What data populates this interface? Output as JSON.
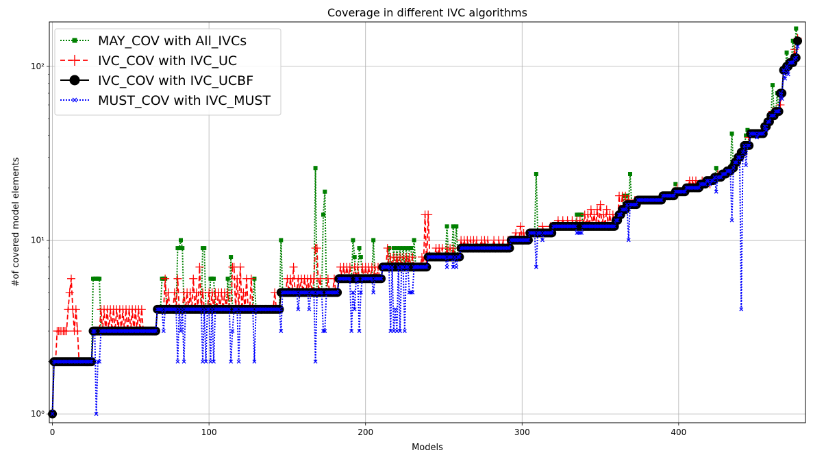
{
  "chart_data": {
    "type": "line",
    "title": "Coverage in different IVC algorithms",
    "xlabel": "Models",
    "ylabel": "#of covered model elements",
    "xlim": [
      -2,
      481
    ],
    "ylim": [
      0.89,
      180
    ],
    "yscale": "log",
    "grid": true,
    "legend_position": "top-left",
    "x_ticks": [
      0,
      100,
      200,
      300,
      400
    ],
    "x_tick_labels": [
      "0",
      "100",
      "200",
      "300",
      "400"
    ],
    "y_ticks": [
      1,
      10,
      100
    ],
    "y_tick_labels": [
      "10⁰",
      "10¹",
      "10²"
    ],
    "baseline_breakpoints": [
      [
        0,
        1
      ],
      [
        1,
        2
      ],
      [
        26,
        3
      ],
      [
        67,
        4
      ],
      [
        146,
        5
      ],
      [
        183,
        6
      ],
      [
        211,
        7
      ],
      [
        240,
        8
      ],
      [
        261,
        9
      ],
      [
        293,
        10
      ],
      [
        305,
        11
      ],
      [
        320,
        12
      ],
      [
        360,
        13
      ],
      [
        362,
        14
      ],
      [
        364,
        15
      ],
      [
        367,
        16
      ],
      [
        374,
        17
      ],
      [
        390,
        18
      ],
      [
        398,
        19
      ],
      [
        405,
        20
      ],
      [
        414,
        21
      ],
      [
        418,
        22
      ],
      [
        423,
        23
      ],
      [
        428,
        24
      ],
      [
        431,
        25
      ],
      [
        434,
        26
      ],
      [
        436,
        28
      ],
      [
        438,
        30
      ],
      [
        440,
        32
      ],
      [
        442,
        35
      ],
      [
        446,
        41
      ],
      [
        455,
        45
      ],
      [
        457,
        48
      ],
      [
        459,
        52
      ],
      [
        462,
        55
      ],
      [
        465,
        70
      ],
      [
        467,
        95
      ],
      [
        469,
        100
      ],
      [
        471,
        105
      ],
      [
        474,
        112
      ],
      [
        476,
        140
      ]
    ],
    "series": [
      {
        "name": "MAY_COV with All_IVCs",
        "color": "#008000",
        "line_style": "dotted",
        "marker": "square",
        "deviations": [
          [
            26,
            6
          ],
          [
            27,
            6
          ],
          [
            28,
            6
          ],
          [
            29,
            6
          ],
          [
            30,
            6
          ],
          [
            70,
            6
          ],
          [
            71,
            6
          ],
          [
            72,
            6
          ],
          [
            80,
            9
          ],
          [
            81,
            9
          ],
          [
            82,
            10
          ],
          [
            83,
            9
          ],
          [
            96,
            9
          ],
          [
            97,
            9
          ],
          [
            101,
            6
          ],
          [
            102,
            6
          ],
          [
            103,
            6
          ],
          [
            112,
            6
          ],
          [
            114,
            8
          ],
          [
            129,
            6
          ],
          [
            146,
            10
          ],
          [
            168,
            26
          ],
          [
            173,
            14
          ],
          [
            174,
            19
          ],
          [
            192,
            10
          ],
          [
            193,
            8
          ],
          [
            196,
            9
          ],
          [
            197,
            8
          ],
          [
            205,
            10
          ],
          [
            215,
            9
          ],
          [
            218,
            9
          ],
          [
            220,
            9
          ],
          [
            222,
            9
          ],
          [
            224,
            9
          ],
          [
            226,
            9
          ],
          [
            228,
            9
          ],
          [
            229,
            9
          ],
          [
            231,
            10
          ],
          [
            252,
            12
          ],
          [
            256,
            12
          ],
          [
            258,
            12
          ],
          [
            309,
            24
          ],
          [
            335,
            14
          ],
          [
            336,
            14
          ],
          [
            337,
            14
          ],
          [
            338,
            14
          ],
          [
            365,
            18
          ],
          [
            367,
            18
          ],
          [
            369,
            24
          ],
          [
            372,
            16
          ],
          [
            398,
            21
          ],
          [
            403,
            19
          ],
          [
            410,
            20
          ],
          [
            415,
            21
          ],
          [
            424,
            26
          ],
          [
            432,
            25
          ],
          [
            434,
            41
          ],
          [
            443,
            40
          ],
          [
            444,
            43
          ],
          [
            460,
            78
          ],
          [
            463,
            70
          ],
          [
            469,
            120
          ],
          [
            473,
            140
          ],
          [
            475,
            165
          ]
        ]
      },
      {
        "name": "IVC_COV with IVC_UC",
        "color": "#ff0000",
        "line_style": "dashed",
        "marker": "plus",
        "deviations": [
          [
            3,
            3
          ],
          [
            4,
            3
          ],
          [
            5,
            3
          ],
          [
            6,
            3
          ],
          [
            7,
            3
          ],
          [
            8,
            3
          ],
          [
            9,
            3
          ],
          [
            10,
            4
          ],
          [
            11,
            5
          ],
          [
            12,
            6
          ],
          [
            13,
            4
          ],
          [
            14,
            3
          ],
          [
            15,
            4
          ],
          [
            16,
            3
          ],
          [
            31,
            4
          ],
          [
            33,
            4
          ],
          [
            35,
            4
          ],
          [
            37,
            4
          ],
          [
            39,
            4
          ],
          [
            41,
            4
          ],
          [
            43,
            4
          ],
          [
            45,
            4
          ],
          [
            47,
            4
          ],
          [
            49,
            4
          ],
          [
            51,
            4
          ],
          [
            53,
            4
          ],
          [
            55,
            4
          ],
          [
            57,
            4
          ],
          [
            72,
            6
          ],
          [
            74,
            5
          ],
          [
            78,
            5
          ],
          [
            80,
            6
          ],
          [
            84,
            5
          ],
          [
            86,
            5
          ],
          [
            88,
            5
          ],
          [
            90,
            6
          ],
          [
            92,
            5
          ],
          [
            94,
            7
          ],
          [
            96,
            5
          ],
          [
            100,
            5
          ],
          [
            102,
            5
          ],
          [
            104,
            5
          ],
          [
            106,
            5
          ],
          [
            108,
            5
          ],
          [
            110,
            5
          ],
          [
            112,
            5
          ],
          [
            115,
            7
          ],
          [
            116,
            7
          ],
          [
            118,
            6
          ],
          [
            120,
            7
          ],
          [
            122,
            5
          ],
          [
            124,
            6
          ],
          [
            127,
            6
          ],
          [
            142,
            5
          ],
          [
            145,
            4
          ],
          [
            150,
            6
          ],
          [
            152,
            6
          ],
          [
            154,
            7
          ],
          [
            157,
            6
          ],
          [
            159,
            6
          ],
          [
            161,
            6
          ],
          [
            163,
            6
          ],
          [
            165,
            6
          ],
          [
            167,
            6
          ],
          [
            168,
            9
          ],
          [
            169,
            9
          ],
          [
            171,
            6
          ],
          [
            176,
            6
          ],
          [
            180,
            6
          ],
          [
            184,
            7
          ],
          [
            186,
            7
          ],
          [
            188,
            7
          ],
          [
            190,
            7
          ],
          [
            193,
            7
          ],
          [
            195,
            7
          ],
          [
            198,
            7
          ],
          [
            200,
            7
          ],
          [
            202,
            7
          ],
          [
            204,
            7
          ],
          [
            206,
            7
          ],
          [
            208,
            7
          ],
          [
            214,
            9
          ],
          [
            216,
            8
          ],
          [
            218,
            8
          ],
          [
            220,
            8
          ],
          [
            222,
            8
          ],
          [
            224,
            8
          ],
          [
            226,
            8
          ],
          [
            228,
            8
          ],
          [
            230,
            8
          ],
          [
            236,
            8
          ],
          [
            238,
            14
          ],
          [
            240,
            14
          ],
          [
            245,
            9
          ],
          [
            247,
            9
          ],
          [
            249,
            9
          ],
          [
            252,
            9
          ],
          [
            254,
            9
          ],
          [
            256,
            9
          ],
          [
            261,
            10
          ],
          [
            263,
            10
          ],
          [
            265,
            10
          ],
          [
            267,
            10
          ],
          [
            269,
            10
          ],
          [
            271,
            10
          ],
          [
            274,
            10
          ],
          [
            276,
            10
          ],
          [
            278,
            10
          ],
          [
            282,
            10
          ],
          [
            285,
            10
          ],
          [
            288,
            10
          ],
          [
            291,
            10
          ],
          [
            293,
            10
          ],
          [
            296,
            11
          ],
          [
            299,
            12
          ],
          [
            301,
            11
          ],
          [
            305,
            11
          ],
          [
            310,
            11
          ],
          [
            313,
            12
          ],
          [
            316,
            11
          ],
          [
            318,
            12
          ],
          [
            323,
            13
          ],
          [
            326,
            13
          ],
          [
            329,
            13
          ],
          [
            332,
            13
          ],
          [
            335,
            13
          ],
          [
            337,
            13
          ],
          [
            340,
            14
          ],
          [
            342,
            14
          ],
          [
            344,
            15
          ],
          [
            346,
            14
          ],
          [
            348,
            15
          ],
          [
            350,
            16
          ],
          [
            352,
            14
          ],
          [
            354,
            15
          ],
          [
            356,
            14
          ],
          [
            358,
            14
          ],
          [
            362,
            18
          ],
          [
            364,
            18
          ],
          [
            366,
            18
          ],
          [
            368,
            17
          ],
          [
            370,
            16
          ],
          [
            372,
            17
          ],
          [
            399,
            20
          ],
          [
            401,
            19
          ],
          [
            407,
            22
          ],
          [
            409,
            22
          ],
          [
            411,
            22
          ],
          [
            415,
            22
          ],
          [
            420,
            21
          ],
          [
            425,
            24
          ],
          [
            427,
            23
          ],
          [
            430,
            25
          ],
          [
            436,
            27
          ],
          [
            438,
            29
          ],
          [
            441,
            31
          ],
          [
            445,
            39
          ],
          [
            460,
            55
          ],
          [
            465,
            60
          ],
          [
            471,
            105
          ],
          [
            474,
            125
          ],
          [
            476,
            145
          ]
        ]
      },
      {
        "name": "IVC_COV with IVC_UCBF",
        "color": "#000000",
        "line_style": "solid",
        "marker": "circle",
        "deviations": []
      },
      {
        "name": "MUST_COV with IVC_MUST",
        "color": "#0000ff",
        "line_style": "dotted",
        "marker": "x",
        "deviations": [
          [
            28,
            1
          ],
          [
            29,
            2
          ],
          [
            30,
            2
          ],
          [
            71,
            3
          ],
          [
            80,
            2
          ],
          [
            82,
            3
          ],
          [
            84,
            2
          ],
          [
            96,
            2
          ],
          [
            98,
            2
          ],
          [
            101,
            2
          ],
          [
            103,
            2
          ],
          [
            114,
            2
          ],
          [
            115,
            3
          ],
          [
            119,
            2
          ],
          [
            129,
            2
          ],
          [
            146,
            3
          ],
          [
            157,
            4
          ],
          [
            164,
            4
          ],
          [
            168,
            2
          ],
          [
            173,
            3
          ],
          [
            174,
            3
          ],
          [
            191,
            3
          ],
          [
            192,
            5
          ],
          [
            193,
            4
          ],
          [
            196,
            3
          ],
          [
            197,
            5
          ],
          [
            205,
            5
          ],
          [
            216,
            3
          ],
          [
            218,
            3
          ],
          [
            219,
            4
          ],
          [
            220,
            3
          ],
          [
            222,
            3
          ],
          [
            225,
            3
          ],
          [
            228,
            5
          ],
          [
            229,
            5
          ],
          [
            230,
            5
          ],
          [
            252,
            7
          ],
          [
            256,
            7
          ],
          [
            258,
            7
          ],
          [
            309,
            7
          ],
          [
            313,
            10
          ],
          [
            335,
            11
          ],
          [
            336,
            11
          ],
          [
            337,
            11
          ],
          [
            338,
            11
          ],
          [
            368,
            10
          ],
          [
            420,
            21
          ],
          [
            424,
            19
          ],
          [
            434,
            13
          ],
          [
            440,
            4
          ],
          [
            443,
            27
          ],
          [
            450,
            39
          ],
          [
            456,
            43
          ],
          [
            461,
            52
          ],
          [
            466,
            65
          ],
          [
            468,
            85
          ],
          [
            470,
            90
          ],
          [
            474,
            110
          ],
          [
            476,
            130
          ]
        ]
      }
    ]
  }
}
